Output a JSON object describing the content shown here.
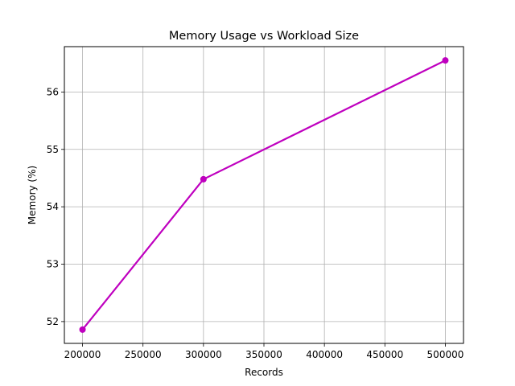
{
  "chart_data": {
    "type": "line",
    "title": "Memory Usage vs Workload Size",
    "xlabel": "Records",
    "ylabel": "Memory (%)",
    "x": [
      200000,
      300000,
      500000
    ],
    "series": [
      {
        "values": [
          51.86,
          54.48,
          56.55
        ],
        "color": "#bf00bf",
        "marker": "circle"
      }
    ],
    "xlim": [
      185000,
      515000
    ],
    "ylim": [
      51.62,
      56.79
    ],
    "xticks": [
      200000,
      250000,
      300000,
      350000,
      400000,
      450000,
      500000
    ],
    "xtick_labels": [
      "200000",
      "250000",
      "300000",
      "350000",
      "400000",
      "450000",
      "500000"
    ],
    "yticks": [
      52,
      53,
      54,
      55,
      56
    ],
    "ytick_labels": [
      "52",
      "53",
      "54",
      "55",
      "56"
    ],
    "grid": true,
    "legend": "none"
  }
}
